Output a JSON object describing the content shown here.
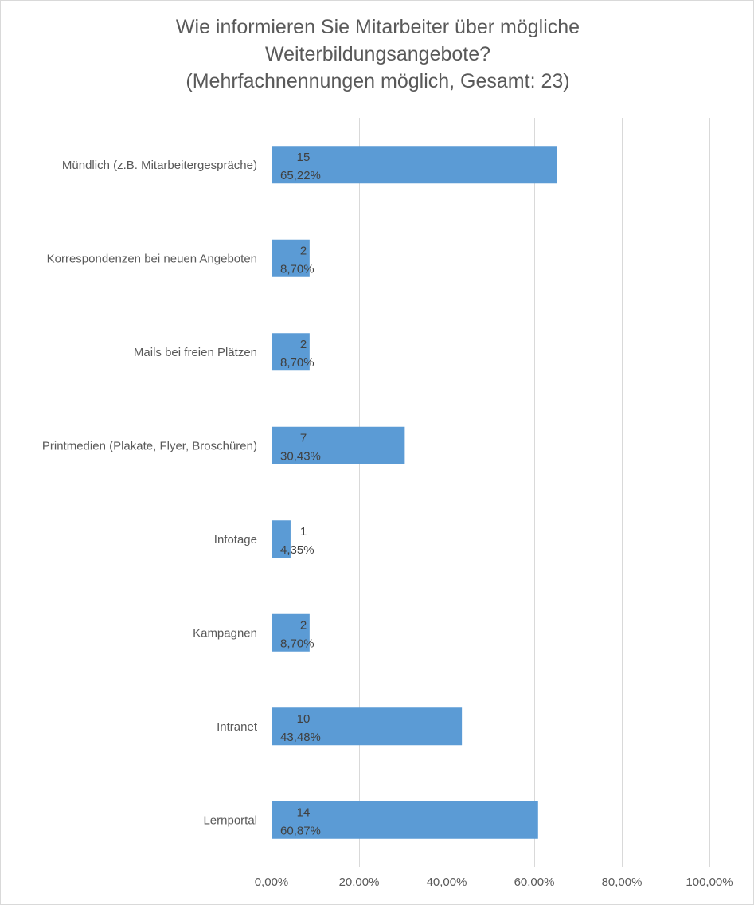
{
  "chart_data": {
    "type": "bar",
    "orientation": "horizontal",
    "title_lines": [
      "Wie informieren Sie Mitarbeiter über mögliche",
      "Weiterbildungsangebote?",
      "(Mehrfachnennungen  möglich, Gesamt: 23)"
    ],
    "categories": [
      "Mündlich (z.B. Mitarbeitergespräche)",
      "Korrespondenzen bei neuen Angeboten",
      "Mails bei freien Plätzen",
      "Printmedien (Plakate, Flyer, Broschüren)",
      "Infotage",
      "Kampagnen",
      "Intranet",
      "Lernportal"
    ],
    "values": [
      65.22,
      8.7,
      8.7,
      30.43,
      4.35,
      8.7,
      43.48,
      60.87
    ],
    "counts": [
      15,
      2,
      2,
      7,
      1,
      2,
      10,
      14
    ],
    "value_labels": [
      "65,22%",
      "8,70%",
      "8,70%",
      "30,43%",
      "4,35%",
      "8,70%",
      "43,48%",
      "60,87%"
    ],
    "x_ticks": [
      0,
      20,
      40,
      60,
      80,
      100
    ],
    "x_tick_labels": [
      "0,00%",
      "20,00%",
      "40,00%",
      "60,00%",
      "80,00%",
      "100,00%"
    ],
    "xlim": [
      0,
      100
    ],
    "grid": true,
    "legend": "none",
    "bar_color": "#5b9bd5",
    "grid_color": "#d9d9d9"
  }
}
